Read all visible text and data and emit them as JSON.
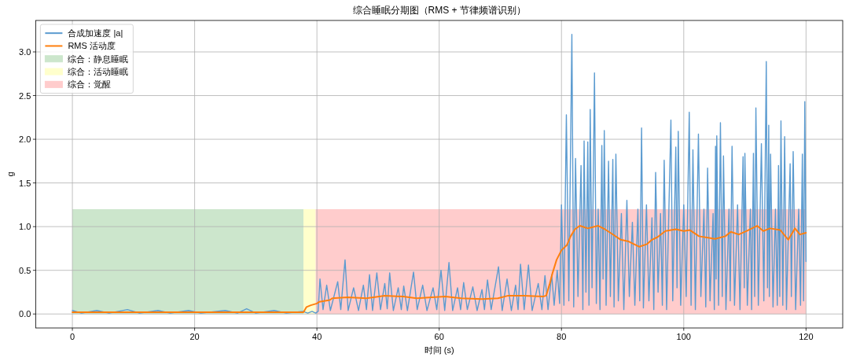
{
  "chart_data": {
    "type": "line",
    "title": "综合睡眠分期图（RMS + 节律频谱识别）",
    "xlabel": "时间 (s)",
    "ylabel": "g",
    "xlim": [
      -6,
      126
    ],
    "xticks": [
      0,
      20,
      40,
      60,
      80,
      100,
      120
    ],
    "ylim": [
      -0.16,
      3.36
    ],
    "yticks": [
      {
        "value": 0,
        "label": "0.0"
      },
      0.5,
      {
        "value": 1,
        "label": "1.0"
      },
      1.5,
      {
        "value": 2,
        "label": "2.0"
      },
      2.5,
      {
        "value": 3,
        "label": "3.0"
      }
    ],
    "grid": true,
    "legend": "top left",
    "series": [
      {
        "name": "合成加速度 |a|",
        "color": "#5b9bd0",
        "x": [
          0,
          1.5,
          4,
          6,
          9,
          11,
          14,
          16,
          19,
          21,
          25,
          27,
          28.5,
          30,
          33,
          35,
          37.7,
          38.5,
          39.2,
          39.8,
          40.2,
          40.5,
          41.0,
          41.6,
          42.2,
          43.4,
          43.9,
          44.6,
          45.1,
          46.0,
          46.8,
          47.6,
          48.1,
          48.6,
          49.1,
          49.8,
          50.4,
          51.1,
          51.5,
          51.9,
          52.5,
          53.3,
          53.8,
          54.2,
          54.8,
          55.8,
          56.4,
          57.3,
          58.0,
          59.0,
          59.6,
          60.3,
          60.9,
          61.6,
          62.2,
          63.0,
          63.5,
          64.0,
          64.6,
          65.5,
          66.2,
          67.0,
          67.4,
          67.9,
          68.5,
          69.7,
          70.3,
          71.1,
          71.8,
          72.5,
          72.9,
          73.3,
          73.9,
          74.6,
          75.2,
          76.2,
          76.8,
          77.3,
          77.8,
          78.4,
          78.8,
          79.3,
          79.7,
          80.0,
          80.4,
          80.8,
          81.2,
          81.7,
          82.0,
          82.3,
          82.7,
          83.2,
          83.5,
          83.7,
          84.0,
          84.3,
          84.5,
          84.7,
          85.0,
          85.4,
          85.7,
          86.0,
          86.3,
          86.6,
          86.8,
          87.0,
          87.3,
          87.7,
          88.0,
          88.4,
          88.6,
          88.9,
          89.3,
          89.8,
          90.2,
          90.7,
          91.1,
          91.6,
          92.0,
          92.5,
          92.8,
          93.1,
          93.4,
          93.9,
          94.3,
          94.8,
          95.1,
          95.4,
          95.8,
          96.2,
          96.5,
          96.8,
          97.2,
          97.9,
          98.2,
          98.7,
          98.9,
          99.1,
          99.5,
          100.0,
          100.4,
          100.9,
          101.2,
          101.5,
          101.9,
          102.4,
          102.8,
          103.3,
          103.6,
          103.9,
          104.3,
          104.8,
          105.0,
          105.2,
          105.3,
          105.4,
          105.7,
          106.0,
          106.3,
          106.5,
          106.9,
          107.4,
          107.6,
          107.9,
          108.3,
          108.8,
          109.2,
          109.7,
          109.9,
          110.0,
          110.4,
          110.9,
          111.1,
          111.4,
          111.6,
          111.8,
          112.2,
          112.7,
          113.1,
          113.5,
          113.7,
          113.9,
          114.0,
          114.2,
          114.6,
          115.0,
          115.3,
          115.5,
          115.7,
          115.9,
          116.2,
          116.5,
          116.8,
          117.4,
          117.6,
          117.9,
          118.3,
          118.8,
          119.1,
          119.4,
          119.6,
          119.8,
          120.0
        ],
        "values": [
          0.04,
          0.01,
          0.04,
          0.01,
          0.05,
          0.01,
          0.04,
          0.01,
          0.04,
          0.01,
          0.04,
          0.01,
          0.06,
          0.01,
          0.04,
          0.01,
          0.03,
          0.01,
          0.03,
          0.01,
          0.03,
          0.4,
          0.05,
          0.33,
          0.04,
          0.37,
          0.05,
          0.62,
          0.04,
          0.3,
          0.04,
          0.33,
          0.05,
          0.45,
          0.04,
          0.47,
          0.05,
          0.35,
          0.06,
          0.47,
          0.04,
          0.3,
          0.05,
          0.32,
          0.04,
          0.48,
          0.05,
          0.33,
          0.04,
          0.3,
          0.05,
          0.5,
          0.04,
          0.59,
          0.04,
          0.3,
          0.05,
          0.36,
          0.05,
          0.31,
          0.04,
          0.28,
          0.05,
          0.39,
          0.05,
          0.54,
          0.04,
          0.4,
          0.04,
          0.33,
          0.05,
          0.57,
          0.05,
          0.56,
          0.04,
          0.35,
          0.05,
          0.44,
          0.05,
          0.45,
          0.1,
          0.5,
          0.12,
          1.25,
          0.1,
          2.28,
          0.15,
          3.2,
          0.08,
          1.78,
          0.2,
          1.7,
          0.05,
          1.98,
          0.25,
          1.97,
          0.1,
          2.34,
          0.3,
          2.76,
          0.12,
          1.2,
          0.05,
          1.93,
          0.4,
          2.1,
          0.1,
          1.75,
          0.2,
          1.77,
          0.08,
          1.83,
          0.15,
          1.15,
          0.05,
          1.3,
          0.2,
          1.05,
          0.1,
          1.2,
          0.15,
          2.13,
          0.07,
          1.25,
          0.15,
          1.1,
          0.05,
          1.62,
          0.25,
          1.15,
          0.1,
          1.76,
          0.05,
          2.22,
          0.15,
          1.91,
          0.3,
          2.09,
          0.1,
          1.25,
          0.2,
          2.31,
          0.1,
          1.88,
          0.05,
          2.06,
          0.2,
          1.2,
          0.08,
          1.67,
          0.15,
          1.15,
          0.05,
          1.92,
          0.4,
          2.04,
          0.1,
          2.19,
          0.2,
          1.81,
          0.05,
          1.2,
          0.15,
          1.92,
          0.1,
          1.25,
          0.05,
          1.8,
          0.3,
          1.84,
          0.1,
          1.2,
          0.05,
          1.84,
          0.2,
          2.36,
          0.1,
          1.95,
          0.15,
          2.89,
          0.3,
          2.16,
          0.2,
          1.83,
          0.08,
          1.2,
          0.1,
          1.7,
          0.2,
          2.21,
          0.1,
          2.03,
          0.05,
          1.72,
          0.2,
          1.86,
          0.05,
          1.2,
          0.1,
          1.83,
          0.15,
          2.43,
          0.6
        ]
      },
      {
        "name": "RMS 活动度",
        "color": "#ff7f0e",
        "x": [
          0,
          37.8,
          38.3,
          39.0,
          40.0,
          40.4,
          42.1,
          42.5,
          45,
          48.1,
          51.1,
          54.1,
          56.3,
          58.8,
          61.0,
          63.6,
          67.0,
          69.6,
          71.3,
          73.8,
          77.0,
          77.5,
          78.1,
          78.5,
          79.2,
          80.0,
          80.9,
          81.5,
          82.2,
          83.0,
          84.3,
          86.0,
          87.1,
          88.2,
          89.7,
          91.0,
          92.7,
          94.0,
          94.8,
          95.7,
          97.0,
          98.7,
          100.0,
          101.0,
          102.5,
          104.2,
          105.1,
          106.8,
          107.7,
          109.0,
          110.3,
          112.0,
          113.0,
          114.1,
          115.8,
          117.1,
          118.2,
          119.0,
          120.0
        ],
        "values": [
          0.02,
          0.02,
          0.08,
          0.1,
          0.12,
          0.14,
          0.16,
          0.18,
          0.19,
          0.18,
          0.21,
          0.2,
          0.18,
          0.19,
          0.2,
          0.18,
          0.17,
          0.18,
          0.21,
          0.21,
          0.2,
          0.21,
          0.35,
          0.46,
          0.62,
          0.73,
          0.79,
          0.89,
          0.97,
          1.01,
          0.98,
          1.01,
          0.97,
          0.92,
          0.85,
          0.83,
          0.77,
          0.8,
          0.85,
          0.88,
          0.95,
          0.97,
          0.95,
          0.96,
          0.89,
          0.87,
          0.86,
          0.89,
          0.94,
          0.91,
          0.95,
          1.01,
          0.95,
          0.98,
          0.96,
          0.85,
          0.98,
          0.91,
          0.93
        ]
      },
      {
        "name": "综合：静息睡眠",
        "type": "area",
        "color": "#cce6cc",
        "x": [
          0,
          37.8
        ],
        "values": [
          1.2,
          1.2
        ]
      },
      {
        "name": "综合：活动睡眠",
        "type": "area",
        "color": "#ffffcc",
        "x": [
          37.8,
          39.8
        ],
        "values": [
          1.2,
          1.2
        ]
      },
      {
        "name": "综合：觉醒",
        "type": "area",
        "color": "#ffcccc",
        "x": [
          39.8,
          120
        ],
        "values": [
          1.2,
          1.2
        ]
      }
    ]
  }
}
